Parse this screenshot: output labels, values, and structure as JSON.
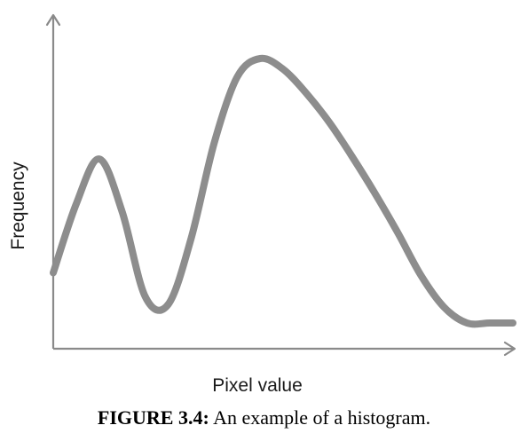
{
  "chart_data": {
    "type": "line",
    "xlabel": "Pixel value",
    "ylabel": "Frequency",
    "x": [
      0,
      1,
      2,
      3,
      4,
      5,
      6,
      7,
      8,
      9,
      10,
      11,
      12,
      13,
      14,
      15,
      16,
      17,
      18,
      19,
      20
    ],
    "series": [
      {
        "values": [
          0.19,
          0.45,
          0.62,
          0.42,
          0.1,
          0.07,
          0.32,
          0.68,
          0.93,
          1.0,
          0.96,
          0.87,
          0.76,
          0.63,
          0.49,
          0.34,
          0.18,
          0.06,
          0.0,
          0.0,
          0.0
        ],
        "color": "#8d8d8d"
      }
    ],
    "ticks": "none",
    "grid": false,
    "legend": "none"
  },
  "caption": {
    "label": "FIGURE 3.4:",
    "text": "An example of a histogram."
  }
}
